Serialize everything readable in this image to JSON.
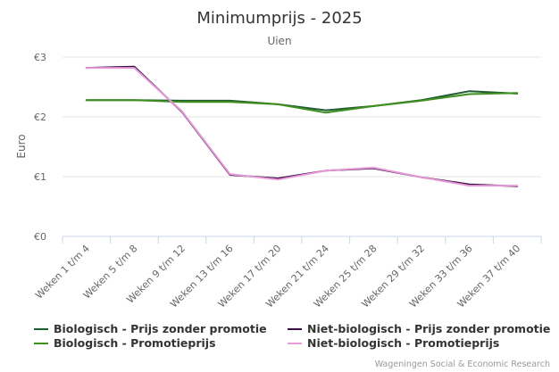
{
  "chart_data": {
    "type": "line",
    "title": "Minimumprijs - 2025",
    "subtitle": "Uien",
    "ylabel": "Euro",
    "xlabel": "",
    "ylim": [
      0,
      3
    ],
    "yticks": [
      {
        "value": 0,
        "label": "€0"
      },
      {
        "value": 1,
        "label": "€1"
      },
      {
        "value": 2,
        "label": "€2"
      },
      {
        "value": 3,
        "label": "€3"
      }
    ],
    "grid": true,
    "legend_position": "bottom",
    "categories": [
      "Weken 1 t/m 4",
      "Weken 5 t/m 8",
      "Weken 9 t/m 12",
      "Weken 13 t/m 16",
      "Weken 17 t/m 20",
      "Weken 21 t/m 24",
      "Weken 25 t/m 28",
      "Weken 29 t/m 32",
      "Weken 33 t/m 36",
      "Weken 37 t/m 40"
    ],
    "series": [
      {
        "name": "Biologisch - Prijs zonder promotie",
        "color": "#1f5c32",
        "values": [
          2.28,
          2.28,
          2.27,
          2.27,
          2.21,
          2.11,
          2.18,
          2.28,
          2.43,
          2.39
        ]
      },
      {
        "name": "Biologisch - Promotieprijs",
        "color": "#3f8f1f",
        "values": [
          2.28,
          2.28,
          2.25,
          2.25,
          2.21,
          2.07,
          2.18,
          2.27,
          2.38,
          2.4
        ]
      },
      {
        "name": "Niet-biologisch - Prijs zonder promotie",
        "color": "#3a0d45",
        "values": [
          2.82,
          2.84,
          2.08,
          1.03,
          0.97,
          1.1,
          1.14,
          0.99,
          0.87,
          0.84
        ]
      },
      {
        "name": "Niet-biologisch - Promotieprijs",
        "color": "#e79ad8",
        "values": [
          2.82,
          2.82,
          2.09,
          1.04,
          0.95,
          1.1,
          1.15,
          0.99,
          0.85,
          0.85
        ]
      }
    ]
  },
  "credits": "Wageningen Social & Economic Research"
}
